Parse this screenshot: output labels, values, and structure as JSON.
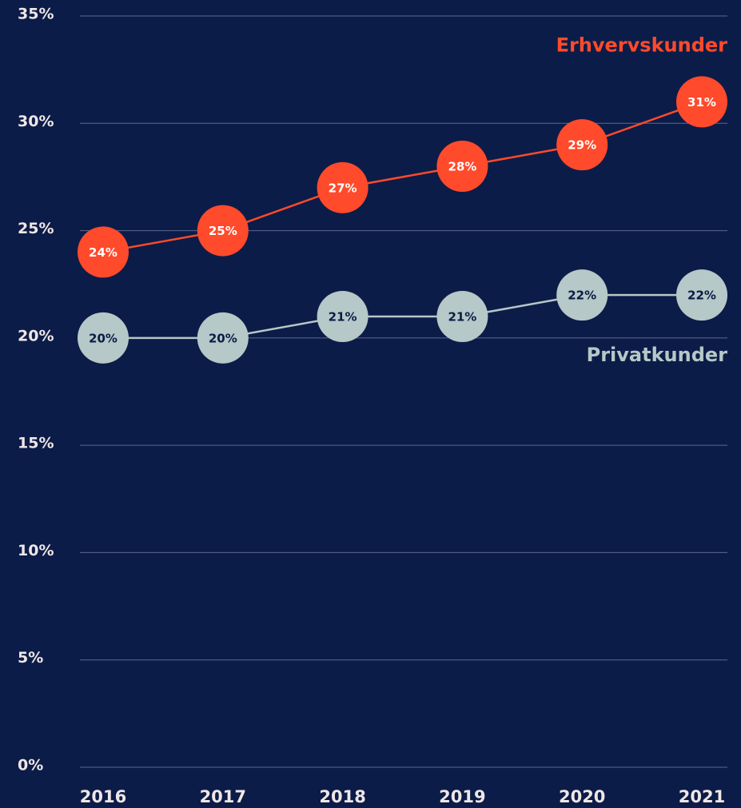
{
  "chart_data": {
    "type": "line",
    "categories": [
      "2016",
      "2017",
      "2018",
      "2019",
      "2020",
      "2021"
    ],
    "series": [
      {
        "name": "Erhvervskunder",
        "color": "#ff4a2b",
        "values": [
          24,
          25,
          27,
          28,
          29,
          31
        ],
        "value_labels": [
          "24%",
          "25%",
          "27%",
          "28%",
          "29%",
          "31%"
        ]
      },
      {
        "name": "Privatkunder",
        "color": "#b6c8c7",
        "values": [
          20,
          20,
          21,
          21,
          22,
          22
        ],
        "value_labels": [
          "20%",
          "20%",
          "21%",
          "21%",
          "22%",
          "22%"
        ]
      }
    ],
    "ylim": [
      0,
      35
    ],
    "yticks": [
      {
        "value": 0,
        "label": "0%"
      },
      {
        "value": 5,
        "label": "5%"
      },
      {
        "value": 10,
        "label": "10%"
      },
      {
        "value": 15,
        "label": "15%"
      },
      {
        "value": 20,
        "label": "20%"
      },
      {
        "value": 25,
        "label": "25%"
      },
      {
        "value": 30,
        "label": "30%"
      },
      {
        "value": 35,
        "label": "35%"
      }
    ],
    "grid": true
  }
}
